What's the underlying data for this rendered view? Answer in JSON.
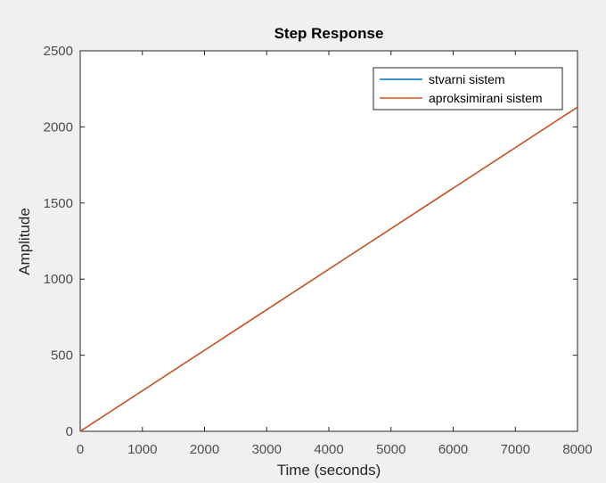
{
  "chart_data": {
    "type": "line",
    "title": "Step Response",
    "xlabel": "Time (seconds)",
    "ylabel": "Amplitude",
    "xlim": [
      0,
      8000
    ],
    "ylim": [
      0,
      2500
    ],
    "xticks": [
      0,
      1000,
      2000,
      3000,
      4000,
      5000,
      6000,
      7000,
      8000
    ],
    "yticks": [
      0,
      500,
      1000,
      1500,
      2000,
      2500
    ],
    "grid": false,
    "legend_position": "top-right",
    "series": [
      {
        "name": "stvarni sistem",
        "color": "#0072bd",
        "x": [
          0,
          8000
        ],
        "y": [
          0,
          2130
        ]
      },
      {
        "name": "aproksimirani sistem",
        "color": "#d95319",
        "x": [
          0,
          8000
        ],
        "y": [
          0,
          2130
        ]
      }
    ]
  },
  "colors": {
    "figure_background": "#f0f0f0",
    "axes_background": "#ffffff",
    "axis_color": "#262626",
    "tick_label_color": "#4d4d4d"
  }
}
